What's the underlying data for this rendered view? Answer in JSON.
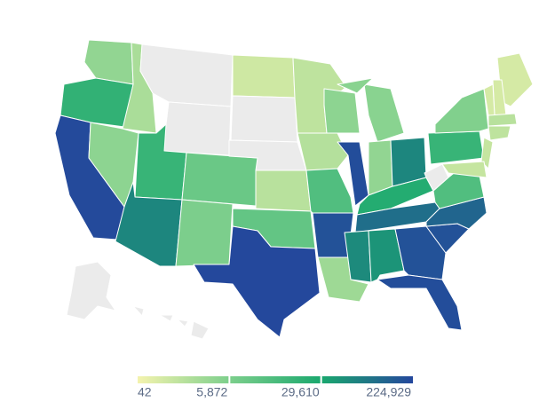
{
  "chart_data": {
    "type": "choropleth",
    "values": [
      2500,
      20000,
      210000,
      900,
      3000,
      null,
      null,
      18000,
      60000,
      8000,
      6000,
      200,
      null,
      null,
      500,
      9000,
      220000,
      400,
      600,
      12000,
      180000,
      1500,
      3000,
      200000,
      3500,
      3500,
      2500,
      60000,
      25000,
      100000,
      55000,
      45000,
      180000,
      200000,
      180000,
      120000,
      12000,
      null,
      18000,
      5000,
      300,
      300,
      150,
      150,
      150,
      500,
      400,
      null,
      null
    ],
    "ticks": [
      42,
      {
        "value": 5872,
        "label": "5,872"
      },
      {
        "value": 29610,
        "label": "29,610"
      },
      {
        "value": 224929,
        "label": "224,929"
      }
    ],
    "colors": [
      "#f4f3ae",
      "#7dcf8c",
      "#1aa86e",
      "#24479d"
    ],
    "missing_color": "#ebebeb"
  }
}
